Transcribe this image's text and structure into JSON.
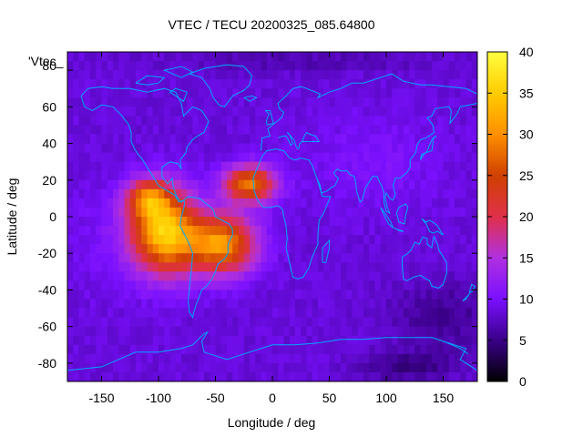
{
  "chart_data": {
    "type": "heatmap",
    "title": "VTEC / TECU 20200325_085.64800",
    "xlabel": "Longitude / deg",
    "ylabel": "Latitude / deg",
    "key_label": "'Vtec_",
    "xlim": [
      -180,
      180
    ],
    "ylim": [
      -90,
      90
    ],
    "x_ticks": [
      -150,
      -100,
      -50,
      0,
      50,
      100,
      150
    ],
    "y_ticks": [
      60,
      40,
      20,
      0,
      -20,
      -40,
      -60,
      -80
    ],
    "y_tick_partial": "80",
    "colorbar": {
      "range": [
        0,
        40
      ],
      "ticks": [
        0,
        5,
        10,
        15,
        20,
        25,
        30,
        35,
        40
      ],
      "palette": [
        "#000000",
        "#3a0088",
        "#7a10ff",
        "#b030e0",
        "#e0304a",
        "#d04000",
        "#ff9000",
        "#ffcc00",
        "#ffff40"
      ]
    },
    "grid_resolution_deg": [
      5,
      5
    ],
    "value_description": "Vertical total electron content (TECU), ~8-10 background, equatorial anomaly crests up to ~36 over South America / Atlantic",
    "coastline_color": "#00a8ff"
  }
}
